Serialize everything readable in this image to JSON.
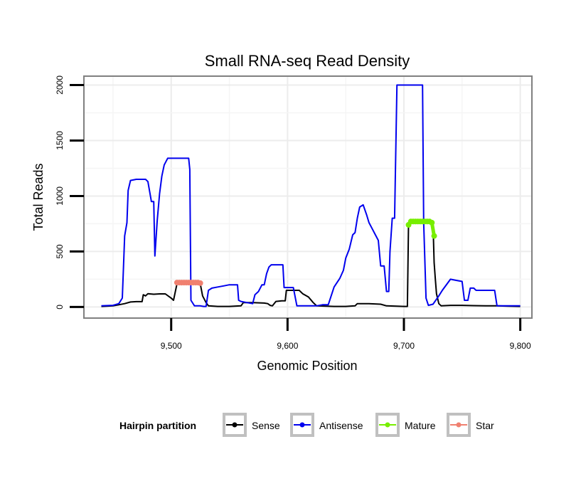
{
  "chart_data": {
    "type": "line",
    "title": "Small RNA-seq Read Density",
    "xlabel": "Genomic Position",
    "ylabel": "Total Reads",
    "xlim": [
      9425,
      9810
    ],
    "ylim": [
      -100,
      2080
    ],
    "x_ticks": [
      9500,
      9600,
      9700,
      9800
    ],
    "x_tick_labels": [
      "9,500",
      "9,600",
      "9,700",
      "9,800"
    ],
    "y_ticks": [
      0,
      500,
      1000,
      1500,
      2000
    ],
    "y_tick_labels": [
      "0",
      "500",
      "1000",
      "1500",
      "2000"
    ],
    "grid": true,
    "legend": {
      "title": "Hairpin partition",
      "position": "bottom",
      "entries": [
        "Sense",
        "Antisense",
        "Mature",
        "Star"
      ]
    },
    "series": [
      {
        "name": "Sense",
        "color": "#000000",
        "points": [
          [
            9440,
            5
          ],
          [
            9450,
            10
          ],
          [
            9455,
            20
          ],
          [
            9460,
            30
          ],
          [
            9465,
            45
          ],
          [
            9470,
            48
          ],
          [
            9475,
            48
          ],
          [
            9476,
            110
          ],
          [
            9478,
            100
          ],
          [
            9480,
            120
          ],
          [
            9485,
            115
          ],
          [
            9490,
            118
          ],
          [
            9495,
            118
          ],
          [
            9500,
            80
          ],
          [
            9502,
            60
          ],
          [
            9505,
            210
          ],
          [
            9525,
            210
          ],
          [
            9527,
            100
          ],
          [
            9530,
            40
          ],
          [
            9532,
            10
          ],
          [
            9540,
            5
          ],
          [
            9550,
            5
          ],
          [
            9560,
            10
          ],
          [
            9562,
            40
          ],
          [
            9570,
            40
          ],
          [
            9580,
            35
          ],
          [
            9583,
            30
          ],
          [
            9585,
            15
          ],
          [
            9587,
            10
          ],
          [
            9590,
            50
          ],
          [
            9595,
            55
          ],
          [
            9598,
            55
          ],
          [
            9599,
            150
          ],
          [
            9610,
            150
          ],
          [
            9613,
            120
          ],
          [
            9618,
            90
          ],
          [
            9622,
            40
          ],
          [
            9625,
            10
          ],
          [
            9640,
            5
          ],
          [
            9650,
            5
          ],
          [
            9658,
            10
          ],
          [
            9660,
            30
          ],
          [
            9670,
            30
          ],
          [
            9680,
            25
          ],
          [
            9685,
            10
          ],
          [
            9700,
            5
          ],
          [
            9703,
            5
          ],
          [
            9704,
            760
          ],
          [
            9725,
            760
          ],
          [
            9726,
            400
          ],
          [
            9727,
            250
          ],
          [
            9728,
            120
          ],
          [
            9730,
            30
          ],
          [
            9732,
            10
          ],
          [
            9740,
            15
          ],
          [
            9750,
            15
          ],
          [
            9760,
            12
          ],
          [
            9770,
            10
          ],
          [
            9780,
            10
          ],
          [
            9790,
            8
          ],
          [
            9800,
            5
          ]
        ]
      },
      {
        "name": "Antisense",
        "color": "#0000ee",
        "points": [
          [
            9440,
            10
          ],
          [
            9450,
            15
          ],
          [
            9455,
            30
          ],
          [
            9458,
            80
          ],
          [
            9460,
            640
          ],
          [
            9462,
            760
          ],
          [
            9463,
            1050
          ],
          [
            9465,
            1140
          ],
          [
            9470,
            1150
          ],
          [
            9478,
            1150
          ],
          [
            9480,
            1130
          ],
          [
            9483,
            950
          ],
          [
            9485,
            950
          ],
          [
            9486,
            460
          ],
          [
            9488,
            780
          ],
          [
            9490,
            1020
          ],
          [
            9492,
            1180
          ],
          [
            9494,
            1280
          ],
          [
            9497,
            1340
          ],
          [
            9515,
            1340
          ],
          [
            9516,
            1240
          ],
          [
            9517,
            60
          ],
          [
            9520,
            10
          ],
          [
            9525,
            10
          ],
          [
            9528,
            5
          ],
          [
            9530,
            5
          ],
          [
            9532,
            150
          ],
          [
            9535,
            170
          ],
          [
            9540,
            180
          ],
          [
            9545,
            190
          ],
          [
            9550,
            200
          ],
          [
            9557,
            200
          ],
          [
            9558,
            60
          ],
          [
            9560,
            50
          ],
          [
            9565,
            40
          ],
          [
            9570,
            30
          ],
          [
            9572,
            110
          ],
          [
            9575,
            140
          ],
          [
            9578,
            200
          ],
          [
            9580,
            200
          ],
          [
            9582,
            300
          ],
          [
            9584,
            360
          ],
          [
            9586,
            380
          ],
          [
            9596,
            380
          ],
          [
            9597,
            175
          ],
          [
            9605,
            175
          ],
          [
            9608,
            10
          ],
          [
            9625,
            10
          ],
          [
            9630,
            20
          ],
          [
            9635,
            20
          ],
          [
            9640,
            180
          ],
          [
            9645,
            260
          ],
          [
            9648,
            330
          ],
          [
            9650,
            440
          ],
          [
            9653,
            520
          ],
          [
            9656,
            650
          ],
          [
            9658,
            670
          ],
          [
            9660,
            800
          ],
          [
            9662,
            900
          ],
          [
            9665,
            920
          ],
          [
            9668,
            830
          ],
          [
            9670,
            760
          ],
          [
            9673,
            700
          ],
          [
            9675,
            660
          ],
          [
            9678,
            600
          ],
          [
            9680,
            370
          ],
          [
            9683,
            370
          ],
          [
            9685,
            140
          ],
          [
            9687,
            140
          ],
          [
            9688,
            500
          ],
          [
            9690,
            800
          ],
          [
            9692,
            800
          ],
          [
            9694,
            2000
          ],
          [
            9716,
            2000
          ],
          [
            9717,
            760
          ],
          [
            9719,
            80
          ],
          [
            9721,
            15
          ],
          [
            9725,
            25
          ],
          [
            9730,
            100
          ],
          [
            9733,
            150
          ],
          [
            9740,
            250
          ],
          [
            9745,
            240
          ],
          [
            9750,
            230
          ],
          [
            9752,
            60
          ],
          [
            9755,
            60
          ],
          [
            9757,
            170
          ],
          [
            9760,
            170
          ],
          [
            9762,
            150
          ],
          [
            9775,
            150
          ],
          [
            9778,
            150
          ],
          [
            9780,
            10
          ],
          [
            9790,
            10
          ],
          [
            9800,
            10
          ]
        ]
      },
      {
        "name": "Mature",
        "color": "#77ee00",
        "points": [
          [
            9704,
            740
          ],
          [
            9706,
            770
          ],
          [
            9708,
            770
          ],
          [
            9710,
            770
          ],
          [
            9712,
            770
          ],
          [
            9714,
            770
          ],
          [
            9716,
            770
          ],
          [
            9718,
            770
          ],
          [
            9720,
            770
          ],
          [
            9722,
            770
          ],
          [
            9724,
            760
          ],
          [
            9726,
            640
          ]
        ]
      },
      {
        "name": "Star",
        "color": "#f08070",
        "points": [
          [
            9505,
            220
          ],
          [
            9507,
            220
          ],
          [
            9509,
            220
          ],
          [
            9511,
            220
          ],
          [
            9513,
            220
          ],
          [
            9515,
            220
          ],
          [
            9517,
            220
          ],
          [
            9519,
            220
          ],
          [
            9521,
            220
          ],
          [
            9523,
            220
          ],
          [
            9525,
            215
          ]
        ]
      }
    ]
  }
}
